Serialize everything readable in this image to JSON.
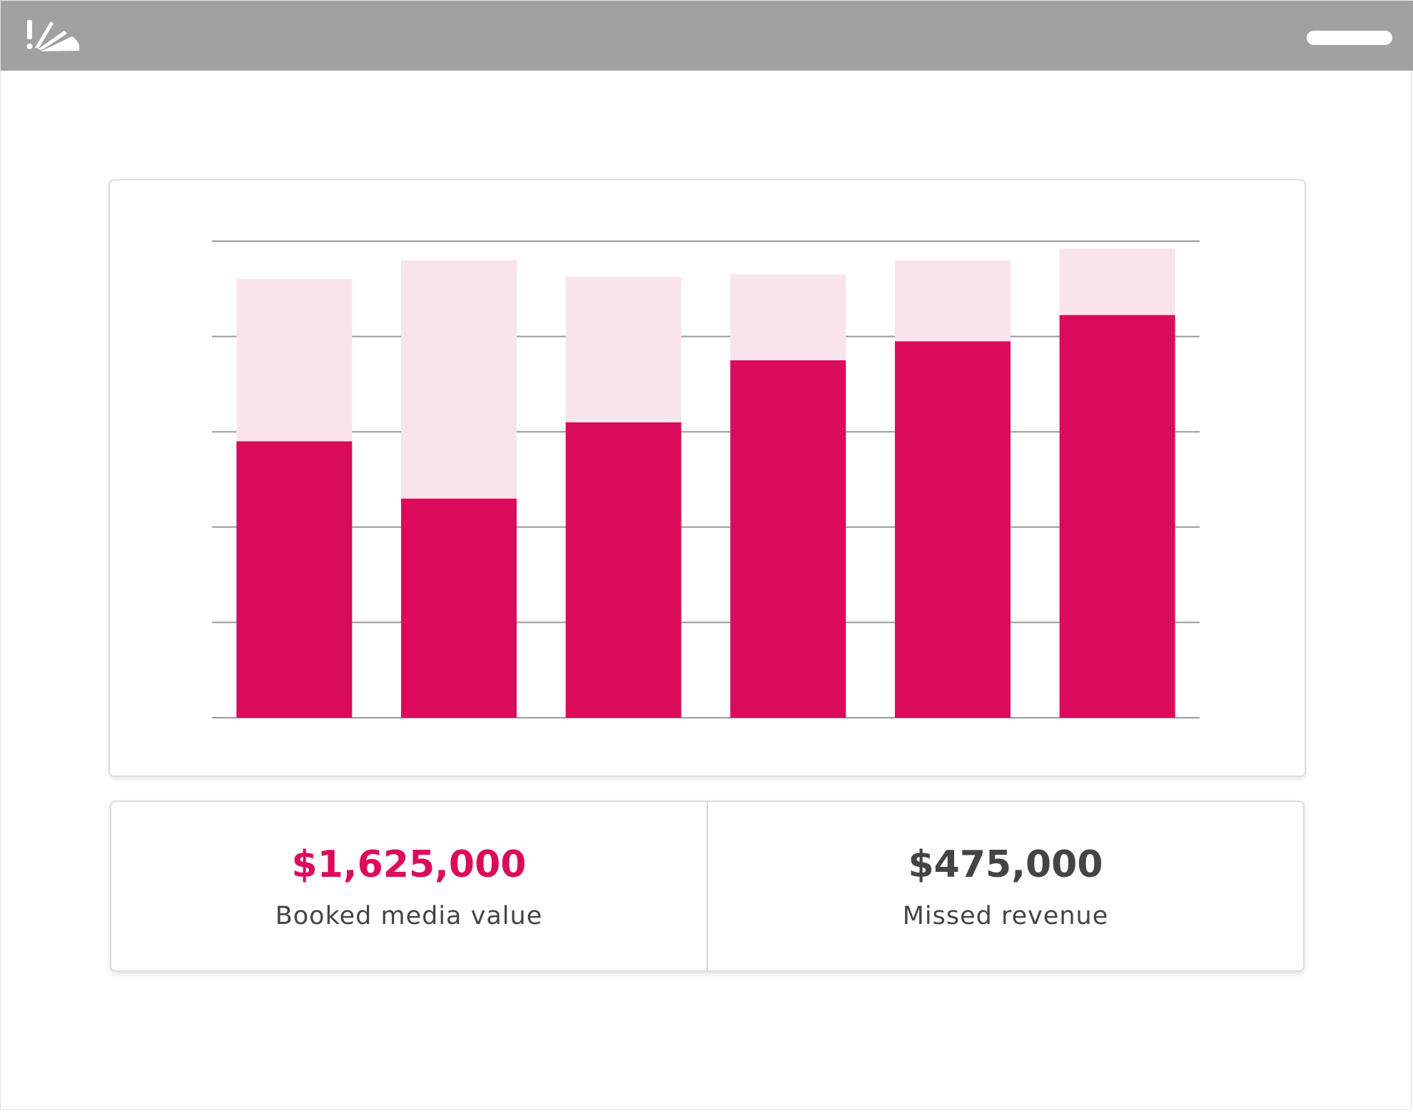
{
  "titlebar": {
    "logo_icon": "starburst-logo-icon",
    "control_icon": "window-bar-icon"
  },
  "colors": {
    "titlebar": "#a1a1a1",
    "booked": "#db0b5b",
    "missed": "#f9e4ec",
    "gridline": "#9a9a9a",
    "dark_text": "#444444"
  },
  "chart_data": {
    "type": "bar",
    "stacked": true,
    "grid": true,
    "legend": "none",
    "ylim": [
      0,
      100
    ],
    "categories": [
      "",
      "",
      "",
      "",
      "",
      ""
    ],
    "series": [
      {
        "values": [
          58,
          46,
          62,
          75,
          79,
          84.5
        ]
      },
      {
        "values": [
          34,
          50,
          30.5,
          18,
          17,
          14
        ]
      }
    ]
  },
  "stats": {
    "booked": {
      "value": "$1,625,000",
      "label": "Booked media value"
    },
    "missed": {
      "value": "$475,000",
      "label": "Missed revenue"
    }
  }
}
